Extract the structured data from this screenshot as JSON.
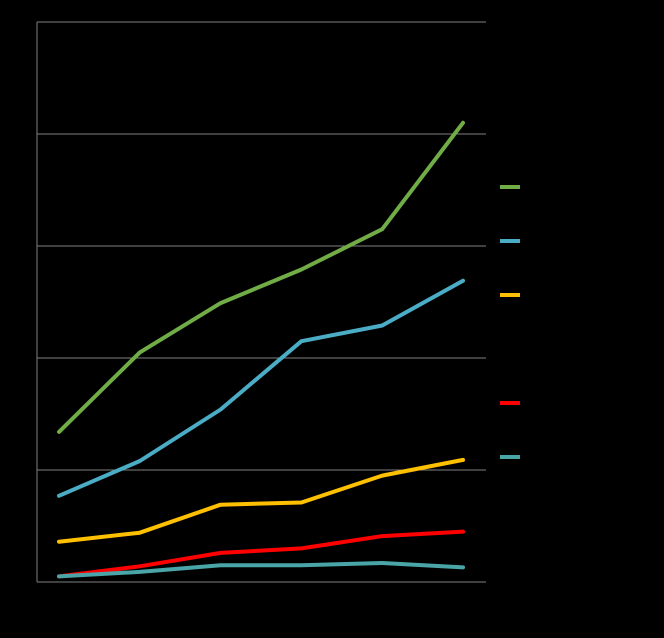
{
  "chart_data": {
    "type": "line",
    "title": "",
    "xlabel": "",
    "ylabel": "",
    "x": [
      1,
      2,
      3,
      4,
      5,
      6
    ],
    "ylim": [
      0,
      5
    ],
    "grid": true,
    "legend_placement": "right",
    "background": "#000000",
    "gridline_color": "#7f7f7f",
    "series": [
      {
        "color": "#70ad47",
        "values": [
          1.34,
          2.05,
          2.49,
          2.79,
          3.15,
          4.1
        ]
      },
      {
        "color": "#4bacc6",
        "values": [
          0.77,
          1.08,
          1.54,
          2.15,
          2.29,
          2.69
        ]
      },
      {
        "color": "#ffc000",
        "values": [
          0.36,
          0.44,
          0.69,
          0.71,
          0.95,
          1.09
        ]
      },
      {
        "color": "#ff0000",
        "values": [
          0.05,
          0.14,
          0.26,
          0.3,
          0.41,
          0.45
        ]
      },
      {
        "color": "#4aa5a8",
        "values": [
          0.05,
          0.09,
          0.15,
          0.15,
          0.17,
          0.13
        ]
      }
    ]
  }
}
